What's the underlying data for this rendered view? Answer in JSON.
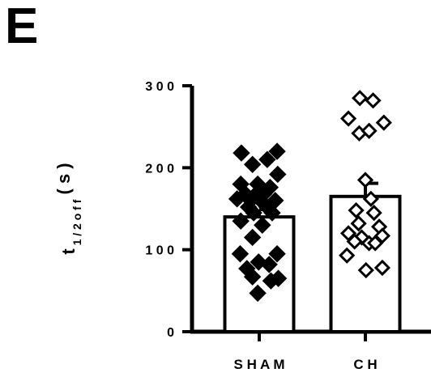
{
  "panel_label": "E",
  "chart_data": {
    "type": "bar",
    "title": "",
    "xlabel": "",
    "ylabel_main": "t",
    "ylabel_sub": "1 / 2 o f f",
    "ylabel_unit": "( s )",
    "ylim": [
      0,
      300
    ],
    "yticks": [
      0,
      100,
      200,
      300
    ],
    "ytick_labels": [
      "0",
      "1 0 0",
      "2 0 0",
      "3 0 0"
    ],
    "categories": [
      "S H A M",
      "C H"
    ],
    "bars": [
      {
        "category": "S H A M",
        "mean": 140,
        "sem": 9,
        "marker": "filled-diamond",
        "points": [
          {
            "x": -0.58,
            "y": 218
          },
          {
            "x": 0.58,
            "y": 220
          },
          {
            "x": -0.22,
            "y": 204
          },
          {
            "x": 0.26,
            "y": 210
          },
          {
            "x": 0.6,
            "y": 192
          },
          {
            "x": -0.6,
            "y": 180
          },
          {
            "x": -0.05,
            "y": 180
          },
          {
            "x": 0.35,
            "y": 176
          },
          {
            "x": -0.45,
            "y": 168
          },
          {
            "x": -0.1,
            "y": 168
          },
          {
            "x": 0.15,
            "y": 168
          },
          {
            "x": -0.72,
            "y": 162
          },
          {
            "x": -0.28,
            "y": 160
          },
          {
            "x": 0.05,
            "y": 160
          },
          {
            "x": 0.52,
            "y": 160
          },
          {
            "x": -0.35,
            "y": 152
          },
          {
            "x": 0.25,
            "y": 152
          },
          {
            "x": -0.18,
            "y": 145
          },
          {
            "x": 0.42,
            "y": 145
          },
          {
            "x": -0.6,
            "y": 135
          },
          {
            "x": 0.1,
            "y": 130
          },
          {
            "x": -0.22,
            "y": 115
          },
          {
            "x": -0.62,
            "y": 95
          },
          {
            "x": 0.58,
            "y": 95
          },
          {
            "x": -0.02,
            "y": 85
          },
          {
            "x": 0.32,
            "y": 82
          },
          {
            "x": -0.4,
            "y": 77
          },
          {
            "x": -0.22,
            "y": 67
          },
          {
            "x": 0.62,
            "y": 65
          },
          {
            "x": 0.38,
            "y": 62
          },
          {
            "x": -0.05,
            "y": 47
          }
        ]
      },
      {
        "category": "C H",
        "mean": 165,
        "sem": 16,
        "marker": "open-diamond",
        "points": [
          {
            "x": -0.18,
            "y": 285
          },
          {
            "x": 0.25,
            "y": 282
          },
          {
            "x": -0.55,
            "y": 260
          },
          {
            "x": 0.6,
            "y": 255
          },
          {
            "x": -0.2,
            "y": 242
          },
          {
            "x": 0.12,
            "y": 245
          },
          {
            "x": 0.0,
            "y": 185
          },
          {
            "x": 0.18,
            "y": 162
          },
          {
            "x": -0.3,
            "y": 148
          },
          {
            "x": 0.28,
            "y": 145
          },
          {
            "x": -0.22,
            "y": 132
          },
          {
            "x": 0.45,
            "y": 128
          },
          {
            "x": -0.55,
            "y": 120
          },
          {
            "x": -0.12,
            "y": 115
          },
          {
            "x": 0.55,
            "y": 117
          },
          {
            "x": -0.35,
            "y": 110
          },
          {
            "x": 0.12,
            "y": 108
          },
          {
            "x": 0.32,
            "y": 108
          },
          {
            "x": -0.6,
            "y": 93
          },
          {
            "x": 0.02,
            "y": 75
          },
          {
            "x": 0.55,
            "y": 78
          }
        ]
      }
    ]
  }
}
